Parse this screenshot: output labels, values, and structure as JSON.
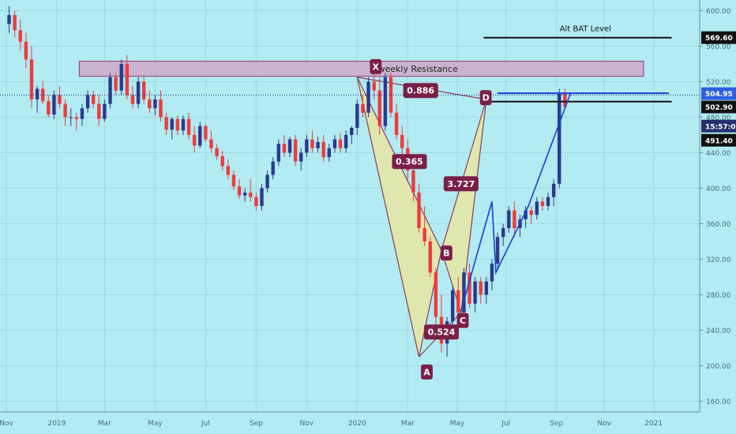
{
  "colors": {
    "background": "#b2ebf2",
    "up": "#2a3a8f",
    "down": "#ef3b3b",
    "pattern_fill": "#e8e6a2",
    "pattern_line": "#8a3b5c",
    "label_bg": "#7a1f47",
    "projection": "#1c3fd6",
    "resistance_fill": "#cbb3cf",
    "resistance_border": "#8b3a73",
    "dotted": "#1e2a8a"
  },
  "chart_data": {
    "type": "candlestick",
    "title": "",
    "ylim": [
      148,
      612
    ],
    "y_ticks": [
      "600.00",
      "560.00",
      "520.00",
      "480.00",
      "440.00",
      "400.00",
      "360.00",
      "320.00",
      "280.00",
      "240.00",
      "200.00",
      "160.00"
    ],
    "y_tick_values": [
      600,
      560,
      520,
      480,
      440,
      400,
      360,
      320,
      280,
      240,
      200,
      160
    ],
    "x_labels": [
      {
        "label": "Nov",
        "t": 0
      },
      {
        "label": "2019",
        "t": 9
      },
      {
        "label": "Mar",
        "t": 17.5
      },
      {
        "label": "May",
        "t": 26.5
      },
      {
        "label": "Jul",
        "t": 35.5
      },
      {
        "label": "Sep",
        "t": 44.5
      },
      {
        "label": "Nov",
        "t": 53.5
      },
      {
        "label": "2020",
        "t": 62.5
      },
      {
        "label": "Mar",
        "t": 71.5
      },
      {
        "label": "May",
        "t": 80.3
      },
      {
        "label": "Jul",
        "t": 89
      },
      {
        "label": "Sep",
        "t": 98
      },
      {
        "label": "Nov",
        "t": 106.5
      },
      {
        "label": "2021",
        "t": 115.3
      }
    ],
    "x_range": [
      0,
      123.5
    ],
    "candles": [
      [
        585,
        605,
        575,
        595
      ],
      [
        595,
        600,
        570,
        578
      ],
      [
        578,
        590,
        555,
        565
      ],
      [
        565,
        575,
        535,
        545
      ],
      [
        545,
        560,
        490,
        500
      ],
      [
        500,
        515,
        485,
        512
      ],
      [
        512,
        520,
        495,
        498
      ],
      [
        498,
        505,
        480,
        483
      ],
      [
        483,
        510,
        478,
        505
      ],
      [
        505,
        515,
        490,
        495
      ],
      [
        495,
        500,
        470,
        480
      ],
      [
        480,
        490,
        470,
        480
      ],
      [
        480,
        485,
        465,
        478
      ],
      [
        478,
        495,
        470,
        490
      ],
      [
        490,
        510,
        485,
        505
      ],
      [
        505,
        510,
        490,
        495
      ],
      [
        495,
        505,
        470,
        478
      ],
      [
        478,
        500,
        475,
        495
      ],
      [
        495,
        530,
        490,
        525
      ],
      [
        525,
        530,
        505,
        510
      ],
      [
        510,
        545,
        505,
        540
      ],
      [
        540,
        550,
        500,
        505
      ],
      [
        505,
        515,
        490,
        495
      ],
      [
        495,
        525,
        490,
        520
      ],
      [
        520,
        525,
        495,
        500
      ],
      [
        500,
        510,
        485,
        490
      ],
      [
        490,
        505,
        482,
        500
      ],
      [
        500,
        510,
        475,
        480
      ],
      [
        480,
        485,
        460,
        466
      ],
      [
        466,
        480,
        455,
        478
      ],
      [
        478,
        482,
        460,
        465
      ],
      [
        465,
        482,
        460,
        478
      ],
      [
        478,
        485,
        455,
        460
      ],
      [
        460,
        470,
        440,
        448
      ],
      [
        448,
        475,
        445,
        470
      ],
      [
        470,
        472,
        452,
        455
      ],
      [
        455,
        465,
        440,
        445
      ],
      [
        445,
        450,
        432,
        436
      ],
      [
        436,
        442,
        420,
        425
      ],
      [
        425,
        432,
        410,
        415
      ],
      [
        415,
        420,
        398,
        402
      ],
      [
        402,
        410,
        388,
        392
      ],
      [
        392,
        400,
        385,
        395
      ],
      [
        395,
        410,
        385,
        390
      ],
      [
        390,
        395,
        375,
        380
      ],
      [
        380,
        405,
        375,
        400
      ],
      [
        400,
        420,
        395,
        415
      ],
      [
        415,
        435,
        410,
        430
      ],
      [
        430,
        455,
        425,
        450
      ],
      [
        450,
        460,
        435,
        440
      ],
      [
        440,
        458,
        435,
        455
      ],
      [
        455,
        460,
        425,
        430
      ],
      [
        430,
        445,
        420,
        440
      ],
      [
        440,
        460,
        435,
        455
      ],
      [
        455,
        465,
        440,
        445
      ],
      [
        445,
        458,
        440,
        452
      ],
      [
        452,
        460,
        430,
        435
      ],
      [
        435,
        450,
        430,
        445
      ],
      [
        445,
        460,
        440,
        455
      ],
      [
        455,
        462,
        440,
        445
      ],
      [
        445,
        465,
        440,
        460
      ],
      [
        460,
        470,
        450,
        468
      ],
      [
        468,
        500,
        460,
        495
      ],
      [
        495,
        505,
        480,
        485
      ],
      [
        485,
        525,
        480,
        520
      ],
      [
        520,
        530,
        500,
        510
      ],
      [
        510,
        525,
        460,
        470
      ],
      [
        470,
        530,
        465,
        525
      ],
      [
        525,
        530,
        480,
        485
      ],
      [
        485,
        495,
        455,
        460
      ],
      [
        460,
        470,
        435,
        445
      ],
      [
        445,
        455,
        410,
        420
      ],
      [
        420,
        430,
        385,
        395
      ],
      [
        395,
        405,
        350,
        355
      ],
      [
        355,
        380,
        335,
        340
      ],
      [
        340,
        345,
        300,
        305
      ],
      [
        305,
        310,
        245,
        255
      ],
      [
        255,
        280,
        215,
        225
      ],
      [
        225,
        255,
        210,
        250
      ],
      [
        250,
        290,
        245,
        285
      ],
      [
        285,
        300,
        255,
        260
      ],
      [
        260,
        310,
        255,
        305
      ],
      [
        305,
        315,
        265,
        270
      ],
      [
        270,
        300,
        260,
        295
      ],
      [
        295,
        300,
        270,
        280
      ],
      [
        280,
        300,
        270,
        295
      ],
      [
        295,
        320,
        285,
        315
      ],
      [
        315,
        350,
        310,
        345
      ],
      [
        345,
        360,
        335,
        355
      ],
      [
        355,
        380,
        350,
        375
      ],
      [
        375,
        385,
        345,
        355
      ],
      [
        355,
        370,
        345,
        365
      ],
      [
        365,
        380,
        355,
        375
      ],
      [
        375,
        380,
        360,
        370
      ],
      [
        370,
        390,
        365,
        385
      ],
      [
        385,
        390,
        375,
        380
      ],
      [
        380,
        395,
        375,
        390
      ],
      [
        390,
        410,
        380,
        405
      ],
      [
        405,
        512,
        400,
        507
      ],
      [
        507,
        512,
        490,
        491.4
      ]
    ],
    "pattern": {
      "X": {
        "t": 62.5,
        "price": 525
      },
      "A": {
        "t": 73.5,
        "price": 210
      },
      "B": {
        "t": 77.5,
        "price": 330
      },
      "C": {
        "t": 81,
        "price": 260
      },
      "D": {
        "t": 85.5,
        "price": 500
      }
    },
    "ratios": [
      {
        "label": "0.886",
        "t": 73.8,
        "price": 510
      },
      {
        "label": "0.365",
        "t": 71.8,
        "price": 430
      },
      {
        "label": "3.727",
        "t": 81,
        "price": 405
      },
      {
        "label": "0.524",
        "t": 77.5,
        "price": 238
      }
    ],
    "point_labels": [
      {
        "label": "X",
        "t": 65.8,
        "price": 537
      },
      {
        "label": "A",
        "t": 74.9,
        "price": 193
      },
      {
        "label": "B",
        "t": 78.4,
        "price": 327
      },
      {
        "label": "C",
        "t": 81.3,
        "price": 251
      },
      {
        "label": "D",
        "t": 85.4,
        "price": 502
      }
    ],
    "resistance_zone": {
      "label": "weekly Resistance",
      "t0": 13,
      "t1": 113.5,
      "price_top": 543,
      "price_bottom": 526
    },
    "alt_bat_level": {
      "label": "Alt BAT Level",
      "t0": 85,
      "t1": 118.5,
      "price": 569.6
    },
    "level_line": {
      "t0": 86,
      "t1": 118.5,
      "price": 502.9
    },
    "blue_hline": {
      "t0": 87.5,
      "t1": 118,
      "price": 507
    },
    "dotted_price": 504.95,
    "projection_path": [
      {
        "t": 81,
        "price": 262
      },
      {
        "t": 86.5,
        "price": 385
      },
      {
        "t": 87.2,
        "price": 305
      },
      {
        "t": 93,
        "price": 380
      },
      {
        "t": 100.5,
        "price": 507
      }
    ],
    "price_badges": [
      {
        "label": "569.60",
        "price": 569.6,
        "style": "dark"
      },
      {
        "label": "504.95",
        "price": 506.5,
        "style": "blue"
      },
      {
        "label": "502.90",
        "price": 491.5,
        "style": "dark"
      },
      {
        "label": "15:57:09",
        "price": 470,
        "style": "navy"
      },
      {
        "label": "491.40",
        "price": 454,
        "style": "dark"
      }
    ]
  }
}
